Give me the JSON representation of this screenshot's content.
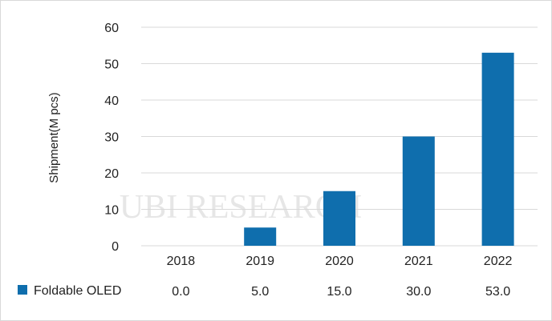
{
  "chart_data": {
    "type": "bar",
    "title": "",
    "xlabel": "",
    "ylabel": "Shipment(M pcs)",
    "ylim": [
      0,
      60
    ],
    "yticks": [
      0,
      10,
      20,
      30,
      40,
      50,
      60
    ],
    "categories": [
      "2018",
      "2019",
      "2020",
      "2021",
      "2022"
    ],
    "series": [
      {
        "name": "Foldable OLED",
        "values": [
          0.0,
          5.0,
          15.0,
          30.0,
          53.0
        ],
        "color": "#0f6ead"
      }
    ],
    "data_table": {
      "series_label": "Foldable OLED",
      "values": [
        "0.0",
        "5.0",
        "15.0",
        "30.0",
        "53.0"
      ]
    },
    "grid": true,
    "gridline_color": "#d9d9d9",
    "legend_placement": "data-table-left",
    "watermark": "UBI RESEARCH"
  }
}
